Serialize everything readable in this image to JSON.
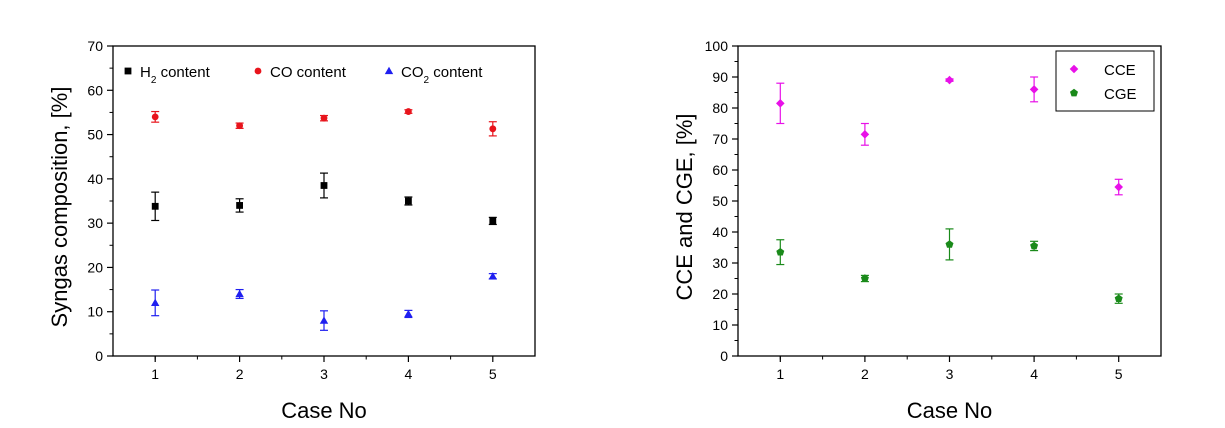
{
  "chart_data": [
    {
      "type": "scatter",
      "xlabel": "Case No",
      "ylabel": "Syngas composition, [%]",
      "xlim": [
        0.5,
        5.5
      ],
      "ylim": [
        0,
        70
      ],
      "xticks": [
        1,
        2,
        3,
        4,
        5
      ],
      "yticks": [
        0,
        10,
        20,
        30,
        40,
        50,
        60,
        70
      ],
      "legend_position": "top, horizontal, no frame",
      "series": [
        {
          "name": "H2 content",
          "label_main": "H",
          "label_sub": "2",
          "label_rest": " content",
          "marker": "square",
          "color": "#000000",
          "x": [
            1,
            2,
            3,
            4,
            5
          ],
          "y": [
            33.8,
            34.0,
            38.5,
            35.0,
            30.5
          ],
          "err": [
            3.2,
            1.5,
            2.8,
            0.9,
            0.8
          ]
        },
        {
          "name": "CO content",
          "label_main": "CO content",
          "label_sub": "",
          "label_rest": "",
          "marker": "circle",
          "color": "#e8141c",
          "x": [
            1,
            2,
            3,
            4,
            5
          ],
          "y": [
            54.0,
            52.0,
            53.7,
            55.2,
            51.3
          ],
          "err": [
            1.2,
            0.6,
            0.6,
            0.4,
            1.6
          ]
        },
        {
          "name": "CO2 content",
          "label_main": "CO",
          "label_sub": "2",
          "label_rest": " content",
          "marker": "triangle",
          "color": "#1f1ff0",
          "x": [
            1,
            2,
            3,
            4,
            5
          ],
          "y": [
            12.0,
            14.0,
            8.0,
            9.5,
            18.0
          ],
          "err": [
            2.9,
            1.0,
            2.2,
            0.8,
            0.6
          ]
        }
      ]
    },
    {
      "type": "scatter",
      "xlabel": "Case No",
      "ylabel": "CCE and CGE, [%]",
      "xlim": [
        0.5,
        5.5
      ],
      "ylim": [
        0,
        100
      ],
      "xticks": [
        1,
        2,
        3,
        4,
        5
      ],
      "yticks": [
        0,
        10,
        20,
        30,
        40,
        50,
        60,
        70,
        80,
        90,
        100
      ],
      "legend_position": "top-right, framed",
      "series": [
        {
          "name": "CCE",
          "label_main": "CCE",
          "label_sub": "",
          "label_rest": "",
          "marker": "diamond",
          "color": "#e811e8",
          "x": [
            1,
            2,
            3,
            4,
            5
          ],
          "y": [
            81.5,
            71.5,
            89.0,
            86.0,
            54.5
          ],
          "err": [
            6.5,
            3.5,
            0.4,
            4.0,
            2.5
          ]
        },
        {
          "name": "CGE",
          "label_main": "CGE",
          "label_sub": "",
          "label_rest": "",
          "marker": "pentagon",
          "color": "#1a8a1a",
          "x": [
            1,
            2,
            3,
            4,
            5
          ],
          "y": [
            33.5,
            25.0,
            36.0,
            35.5,
            18.5
          ],
          "err": [
            4.0,
            1.0,
            5.0,
            1.5,
            1.5
          ]
        }
      ]
    }
  ]
}
